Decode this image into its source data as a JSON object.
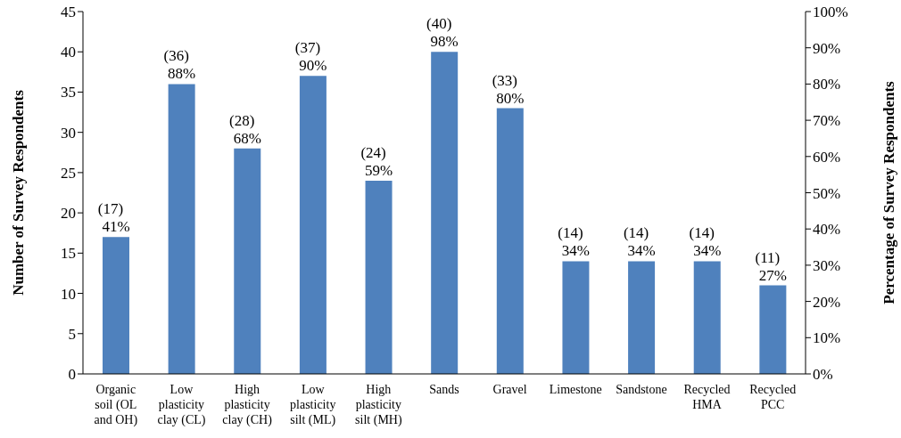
{
  "chart_data": {
    "type": "bar",
    "categories": [
      "Organic\nsoil (OL\nand OH)",
      "Low\nplasticity\nclay (CL)",
      "High\nplasticity\nclay (CH)",
      "Low\nplasticity\nsilt (ML)",
      "High\nplasticity\nsilt (MH)",
      "Sands",
      "Gravel",
      "Limestone",
      "Sandstone",
      "Recycled\nHMA",
      "Recycled\nPCC"
    ],
    "values": [
      17,
      36,
      28,
      37,
      24,
      40,
      33,
      14,
      14,
      14,
      11
    ],
    "value_labels": [
      "(17)\n41%",
      "(36)\n88%",
      "(28)\n68%",
      "(37)\n90%",
      "(24)\n59%",
      "(40)\n98%",
      "(33)\n80%",
      "(14)\n34%",
      "(14)\n34%",
      "(14)\n34%",
      "(11)\n27%"
    ],
    "color": "#4f81bd",
    "ylabel": "Number of Survey Respondents",
    "y2label": "Percentage of Survey Respondents",
    "ylim": [
      0,
      45
    ],
    "yticks": [
      0,
      5,
      10,
      15,
      20,
      25,
      30,
      35,
      40,
      45
    ],
    "y2lim": [
      0,
      100
    ],
    "y2ticks": [
      {
        "value": 0,
        "label": "0%"
      },
      {
        "value": 10,
        "label": "10%"
      },
      {
        "value": 20,
        "label": "20%"
      },
      {
        "value": 30,
        "label": "30%"
      },
      {
        "value": 40,
        "label": "40%"
      },
      {
        "value": 50,
        "label": "50%"
      },
      {
        "value": 60,
        "label": "60%"
      },
      {
        "value": 70,
        "label": "70%"
      },
      {
        "value": 80,
        "label": "80%"
      },
      {
        "value": 90,
        "label": "90%"
      },
      {
        "value": 100,
        "label": "100%"
      }
    ],
    "grid": false,
    "legend": false
  }
}
